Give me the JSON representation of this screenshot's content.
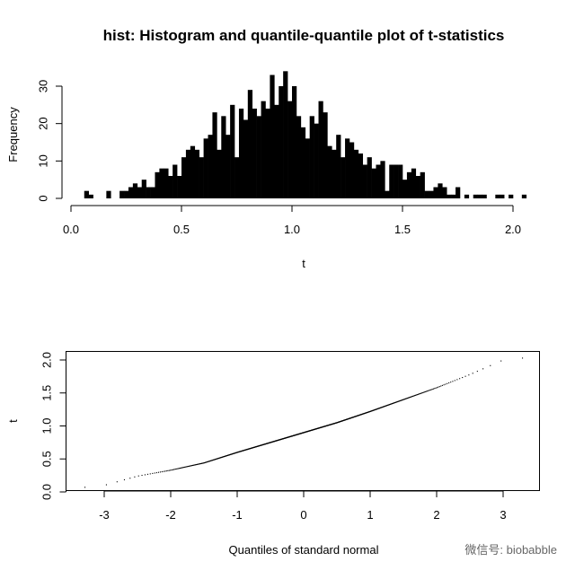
{
  "chart_data": [
    {
      "type": "bar",
      "title": "hist: Histogram and quantile-quantile plot of t-statistics",
      "xlabel": "t",
      "ylabel": "Frequency",
      "xlim": [
        0.0,
        2.05
      ],
      "ylim": [
        0,
        35
      ],
      "xticks": [
        0.0,
        0.5,
        1.0,
        1.5,
        2.0
      ],
      "xtick_labels": [
        "0.0",
        "0.5",
        "1.0",
        "1.5",
        "2.0"
      ],
      "yticks": [
        0,
        10,
        20,
        30
      ],
      "ytick_labels": [
        "0",
        "10",
        "20",
        "30"
      ],
      "grid": false,
      "bin_width": 0.02,
      "bin_start": 0.06,
      "values": [
        2,
        1,
        0,
        0,
        0,
        2,
        0,
        0,
        2,
        2,
        3,
        4,
        3,
        5,
        3,
        3,
        7,
        8,
        8,
        6,
        9,
        6,
        11,
        13,
        14,
        13,
        11,
        16,
        17,
        23,
        13,
        22,
        17,
        25,
        11,
        24,
        21,
        29,
        24,
        22,
        26,
        24,
        33,
        25,
        30,
        34,
        26,
        30,
        22,
        19,
        16,
        22,
        20,
        26,
        23,
        14,
        13,
        17,
        11,
        16,
        15,
        13,
        12,
        9,
        11,
        8,
        9,
        10,
        2,
        9,
        9,
        9,
        5,
        7,
        8,
        6,
        7,
        2,
        2,
        3,
        4,
        3,
        1,
        1,
        3,
        0,
        1,
        0,
        1,
        1,
        1,
        0,
        0,
        1,
        1,
        0,
        1,
        0,
        0,
        1
      ]
    },
    {
      "type": "scatter",
      "title": "",
      "xlabel": "Quantiles of standard normal",
      "ylabel": "t",
      "xlim": [
        -3.45,
        3.45
      ],
      "ylim": [
        -0.05,
        2.1
      ],
      "xticks": [
        -3,
        -2,
        -1,
        0,
        1,
        2,
        3
      ],
      "xtick_labels": [
        "-3",
        "-2",
        "-1",
        "0",
        "1",
        "2",
        "3"
      ],
      "yticks": [
        0.0,
        0.5,
        1.0,
        1.5,
        2.0
      ],
      "ytick_labels": [
        "0.0",
        "0.5",
        "1.0",
        "1.5",
        "2.0"
      ],
      "grid": false,
      "curve": {
        "x": [
          -3.3,
          -3.0,
          -2.5,
          -2.0,
          -1.5,
          -1.0,
          -0.5,
          0.0,
          0.5,
          1.0,
          1.5,
          2.0,
          2.5,
          3.0,
          3.3
        ],
        "y": [
          0.07,
          0.1,
          0.24,
          0.33,
          0.44,
          0.6,
          0.75,
          0.9,
          1.05,
          1.22,
          1.4,
          1.58,
          1.78,
          2.0,
          2.03
        ]
      }
    }
  ],
  "watermark": "微信号: biobabble"
}
